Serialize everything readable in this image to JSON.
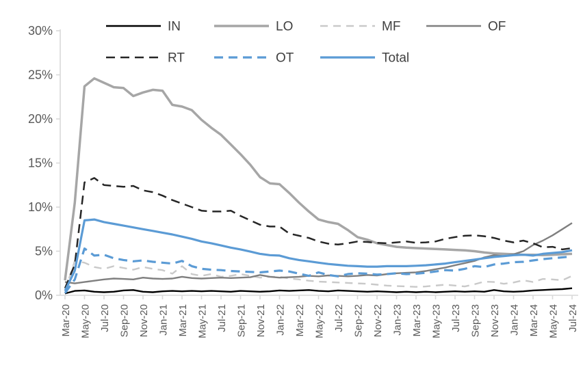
{
  "chart_data": {
    "type": "line",
    "title": "",
    "xlabel": "",
    "ylabel": "",
    "ylim": [
      0,
      30
    ],
    "grid": false,
    "legend_position": "top",
    "y_tick_labels": [
      "0%",
      "5%",
      "10%",
      "15%",
      "20%",
      "25%",
      "30%"
    ],
    "y_tick_values": [
      0,
      5,
      10,
      15,
      20,
      25,
      30
    ],
    "x_label_every": 2,
    "x": [
      "Mar-20",
      "Apr-20",
      "May-20",
      "Jun-20",
      "Jul-20",
      "Aug-20",
      "Sep-20",
      "Oct-20",
      "Nov-20",
      "Dec-20",
      "Jan-21",
      "Feb-21",
      "Mar-21",
      "Apr-21",
      "May-21",
      "Jun-21",
      "Jul-21",
      "Aug-21",
      "Sep-21",
      "Oct-21",
      "Nov-21",
      "Dec-21",
      "Jan-22",
      "Feb-22",
      "Mar-22",
      "Apr-22",
      "May-22",
      "Jun-22",
      "Jul-22",
      "Aug-22",
      "Sep-22",
      "Oct-22",
      "Nov-22",
      "Dec-22",
      "Jan-23",
      "Feb-23",
      "Mar-23",
      "Apr-23",
      "May-23",
      "Jun-23",
      "Jul-23",
      "Aug-23",
      "Sep-23",
      "Oct-23",
      "Nov-23",
      "Dec-23",
      "Jan-24",
      "Feb-24",
      "Mar-24",
      "Apr-24",
      "May-24",
      "Jun-24",
      "Jul-24"
    ],
    "series": [
      {
        "name": "IN",
        "color": "#000000",
        "dash": "none",
        "width": 2.4,
        "values": [
          0.2,
          0.5,
          0.55,
          0.4,
          0.35,
          0.4,
          0.55,
          0.6,
          0.4,
          0.35,
          0.45,
          0.5,
          0.45,
          0.5,
          0.45,
          0.5,
          0.45,
          0.4,
          0.5,
          0.45,
          0.4,
          0.45,
          0.55,
          0.5,
          0.55,
          0.6,
          0.5,
          0.45,
          0.55,
          0.5,
          0.45,
          0.4,
          0.45,
          0.4,
          0.35,
          0.4,
          0.35,
          0.4,
          0.35,
          0.4,
          0.45,
          0.4,
          0.45,
          0.4,
          0.6,
          0.45,
          0.4,
          0.45,
          0.55,
          0.6,
          0.65,
          0.7,
          0.8
        ]
      },
      {
        "name": "LO",
        "color": "#a6a6a6",
        "dash": "none",
        "width": 3.5,
        "values": [
          1.7,
          10.5,
          23.7,
          24.6,
          24.1,
          23.6,
          23.5,
          22.6,
          23.0,
          23.3,
          23.2,
          21.6,
          21.4,
          21.0,
          19.9,
          19.0,
          18.2,
          17.1,
          16.0,
          14.8,
          13.4,
          12.7,
          12.6,
          11.6,
          10.5,
          9.5,
          8.6,
          8.3,
          8.1,
          7.4,
          6.6,
          6.3,
          5.9,
          5.7,
          5.5,
          5.4,
          5.35,
          5.3,
          5.25,
          5.2,
          5.15,
          5.1,
          5.0,
          4.85,
          4.75,
          4.7,
          4.65,
          4.6,
          4.6,
          4.55,
          4.6,
          4.65,
          4.7
        ]
      },
      {
        "name": "MF",
        "color": "#c9c9c9",
        "dash": "11 8",
        "width": 2.4,
        "values": [
          0.5,
          3.9,
          3.7,
          3.2,
          3.0,
          3.3,
          3.1,
          2.9,
          3.2,
          3.0,
          2.85,
          2.45,
          3.3,
          2.4,
          2.2,
          2.4,
          2.1,
          2.2,
          2.4,
          2.2,
          2.0,
          2.1,
          2.1,
          1.9,
          1.8,
          1.65,
          1.55,
          1.5,
          1.45,
          1.4,
          1.35,
          1.3,
          1.2,
          1.1,
          1.05,
          1.0,
          0.95,
          1.0,
          1.1,
          1.2,
          1.1,
          1.0,
          1.25,
          1.55,
          1.5,
          1.3,
          1.45,
          1.7,
          1.5,
          1.85,
          1.8,
          1.7,
          2.2
        ]
      },
      {
        "name": "OF",
        "color": "#7f7f7f",
        "dash": "none",
        "width": 2.4,
        "values": [
          1.5,
          1.35,
          1.5,
          1.65,
          1.8,
          1.9,
          1.85,
          1.8,
          2.0,
          1.9,
          1.85,
          1.9,
          2.1,
          1.95,
          1.9,
          1.95,
          2.0,
          1.95,
          2.0,
          2.05,
          2.3,
          2.1,
          2.0,
          2.05,
          2.1,
          2.2,
          2.15,
          2.25,
          2.2,
          2.15,
          2.2,
          2.3,
          2.25,
          2.4,
          2.5,
          2.55,
          2.6,
          2.75,
          2.95,
          3.15,
          3.4,
          3.65,
          3.9,
          4.3,
          4.55,
          4.45,
          4.65,
          5.0,
          5.7,
          6.2,
          6.8,
          7.5,
          8.2
        ]
      },
      {
        "name": "RT",
        "color": "#262626",
        "dash": "13 8",
        "width": 2.5,
        "values": [
          0.8,
          3.5,
          12.8,
          13.3,
          12.5,
          12.4,
          12.3,
          12.4,
          11.9,
          11.7,
          11.3,
          10.8,
          10.4,
          10.0,
          9.6,
          9.5,
          9.5,
          9.6,
          9.0,
          8.5,
          8.0,
          7.8,
          7.8,
          7.0,
          6.75,
          6.5,
          6.1,
          5.85,
          5.75,
          5.9,
          6.1,
          6.05,
          5.95,
          5.9,
          6.0,
          6.1,
          5.95,
          6.0,
          6.1,
          6.4,
          6.6,
          6.75,
          6.8,
          6.7,
          6.5,
          6.2,
          6.0,
          6.2,
          5.9,
          5.45,
          5.5,
          5.2,
          5.35
        ]
      },
      {
        "name": "OT",
        "color": "#5b9bd5",
        "dash": "13 8",
        "width": 3.2,
        "values": [
          0.25,
          1.8,
          5.3,
          4.5,
          4.6,
          4.2,
          4.0,
          3.85,
          3.95,
          3.8,
          3.7,
          3.6,
          3.9,
          3.3,
          3.0,
          2.9,
          2.85,
          2.75,
          2.7,
          2.65,
          2.6,
          2.7,
          2.8,
          2.7,
          2.45,
          2.2,
          2.6,
          2.3,
          2.15,
          2.4,
          2.5,
          2.45,
          2.35,
          2.4,
          2.5,
          2.4,
          2.45,
          2.55,
          2.7,
          2.85,
          2.8,
          3.0,
          3.3,
          3.2,
          3.5,
          3.6,
          3.75,
          3.8,
          3.95,
          4.1,
          4.2,
          4.3,
          4.4
        ]
      },
      {
        "name": "Total",
        "color": "#5b9bd5",
        "dash": "none",
        "width": 3.2,
        "values": [
          0.5,
          2.8,
          8.5,
          8.6,
          8.3,
          8.1,
          7.9,
          7.7,
          7.5,
          7.3,
          7.1,
          6.9,
          6.65,
          6.4,
          6.1,
          5.9,
          5.65,
          5.4,
          5.2,
          4.95,
          4.7,
          4.55,
          4.5,
          4.2,
          4.0,
          3.85,
          3.7,
          3.55,
          3.45,
          3.35,
          3.3,
          3.25,
          3.25,
          3.3,
          3.3,
          3.3,
          3.35,
          3.4,
          3.5,
          3.6,
          3.75,
          3.9,
          4.05,
          4.2,
          4.35,
          4.45,
          4.55,
          4.6,
          4.5,
          4.7,
          4.8,
          4.9,
          5.1
        ]
      }
    ]
  },
  "style": {
    "axis_color": "#d9d9d9",
    "tick_label_color": "#595959",
    "legend_text_color": "#404040",
    "background": "#ffffff"
  }
}
